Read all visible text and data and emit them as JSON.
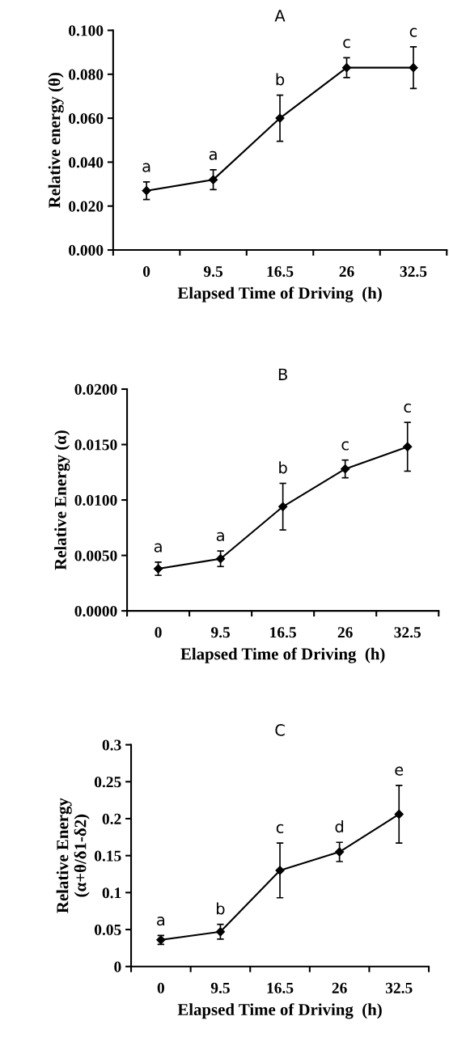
{
  "chart_data": [
    {
      "type": "line",
      "title": "A",
      "xlabel": "Elapsed Time of Driving  (h)",
      "ylabel": "Relative energy (θ)",
      "categories": [
        "0",
        "9.5",
        "16.5",
        "26",
        "32.5"
      ],
      "series": [
        {
          "color": "#000000",
          "values": [
            0.027,
            0.032,
            0.06,
            0.083,
            0.083
          ],
          "errors": [
            0.004,
            0.0045,
            0.0105,
            0.0045,
            0.0095
          ]
        }
      ],
      "ylim": [
        0,
        0.1
      ],
      "yticks": [
        {
          "value": 0,
          "label": "0.000"
        },
        {
          "value": 0.02,
          "label": "0.020"
        },
        {
          "value": 0.04,
          "label": "0.040"
        },
        {
          "value": 0.06,
          "label": "0.060"
        },
        {
          "value": 0.08,
          "label": "0.080"
        },
        {
          "value": 0.1,
          "label": "0.100"
        }
      ],
      "marker": "diamond",
      "line_style": "solid",
      "grid": false,
      "legend": false,
      "annotations": [
        {
          "text": "a",
          "x": "0",
          "y": 0.027
        },
        {
          "text": "a",
          "x": "9.5",
          "y": 0.032
        },
        {
          "text": "b",
          "x": "16.5",
          "y": 0.06
        },
        {
          "text": "c",
          "x": "26",
          "y": 0.083
        },
        {
          "text": "c",
          "x": "32.5",
          "y": 0.083
        }
      ]
    },
    {
      "type": "line",
      "title": "B",
      "xlabel": "Elapsed Time of Driving  (h)",
      "ylabel": "Relative Energy (α)",
      "categories": [
        "0",
        "9.5",
        "16.5",
        "26",
        "32.5"
      ],
      "series": [
        {
          "color": "#000000",
          "values": [
            0.0038,
            0.0047,
            0.0094,
            0.0128,
            0.0148
          ],
          "errors": [
            0.0006,
            0.0007,
            0.0021,
            0.0008,
            0.0022
          ]
        }
      ],
      "ylim": [
        0,
        0.02
      ],
      "yticks": [
        {
          "value": 0,
          "label": "0.0000"
        },
        {
          "value": 0.005,
          "label": "0.0050"
        },
        {
          "value": 0.01,
          "label": "0.0100"
        },
        {
          "value": 0.015,
          "label": "0.0150"
        },
        {
          "value": 0.02,
          "label": "0.0200"
        }
      ],
      "marker": "diamond",
      "line_style": "solid",
      "grid": false,
      "legend": false,
      "annotations": [
        {
          "text": "a",
          "x": "0",
          "y": 0.0038
        },
        {
          "text": "a",
          "x": "9.5",
          "y": 0.0047
        },
        {
          "text": "b",
          "x": "16.5",
          "y": 0.0094
        },
        {
          "text": "c",
          "x": "26",
          "y": 0.0128
        },
        {
          "text": "c",
          "x": "32.5",
          "y": 0.0148
        }
      ]
    },
    {
      "type": "line",
      "title": "C",
      "xlabel": "Elapsed Time of Driving  (h)",
      "ylabel": "Relative Energy\n(α+θ/δ1-δ2)",
      "categories": [
        "0",
        "9.5",
        "16.5",
        "26",
        "32.5"
      ],
      "series": [
        {
          "color": "#000000",
          "values": [
            0.036,
            0.047,
            0.13,
            0.155,
            0.206
          ],
          "errors": [
            0.006,
            0.01,
            0.037,
            0.013,
            0.039
          ]
        }
      ],
      "ylim": [
        0,
        0.3
      ],
      "yticks": [
        0,
        0.05,
        0.1,
        0.15,
        0.2,
        0.25,
        0.3
      ],
      "marker": "diamond",
      "line_style": "solid",
      "grid": false,
      "legend": false,
      "annotations": [
        {
          "text": "a",
          "x": "0",
          "y": 0.036
        },
        {
          "text": "b",
          "x": "9.5",
          "y": 0.047
        },
        {
          "text": "c",
          "x": "16.5",
          "y": 0.13
        },
        {
          "text": "d",
          "x": "26",
          "y": 0.155
        },
        {
          "text": "e",
          "x": "32.5",
          "y": 0.206
        }
      ]
    }
  ]
}
